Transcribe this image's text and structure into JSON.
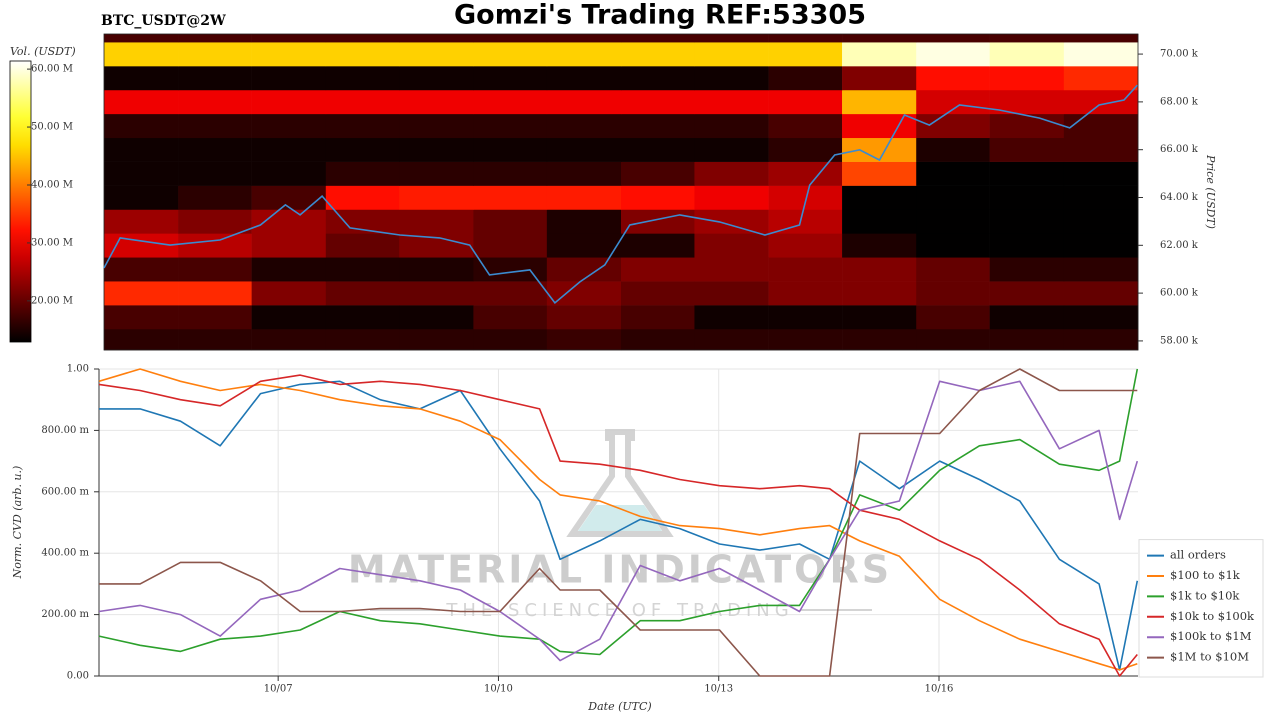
{
  "chart_data": [
    {
      "type": "heatmap",
      "title": "Gomzi's Trading REF:53305",
      "subtitle": "BTC_USDT@2W",
      "ylabel": "Price (USDT)",
      "colorbar_label": "Vol. (USDT)",
      "colormap": "hot",
      "clim": [
        12900000,
        61400000
      ],
      "colorbar_ticks": [
        {
          "value": 20000000,
          "label": "20.00 M"
        },
        {
          "value": 30000000,
          "label": "30.00 M"
        },
        {
          "value": 40000000,
          "label": "40.00 M"
        },
        {
          "value": 50000000,
          "label": "50.00 M"
        },
        {
          "value": 60000000,
          "label": "60.00 M"
        }
      ],
      "xlim": [
        4.63,
        18.71
      ],
      "ylim": [
        57620,
        70840
      ],
      "yticks": [
        {
          "value": 58000,
          "label": "58.00 k"
        },
        {
          "value": 60000,
          "label": "60.00 k"
        },
        {
          "value": 62000,
          "label": "62.00 k"
        },
        {
          "value": 64000,
          "label": "64.00 k"
        },
        {
          "value": 66000,
          "label": "66.00 k"
        },
        {
          "value": 68000,
          "label": "68.00 k"
        },
        {
          "value": 70000,
          "label": "70.00 k"
        }
      ],
      "x_bins": [
        4.63,
        5.64,
        6.64,
        7.65,
        8.65,
        9.66,
        10.66,
        11.67,
        12.67,
        13.68,
        14.68,
        15.69,
        16.69,
        17.7,
        18.71
      ],
      "y_bins": [
        57620,
        58500,
        59500,
        60500,
        61500,
        62500,
        63500,
        64500,
        65500,
        66500,
        67500,
        68500,
        69500,
        70500,
        70840
      ],
      "z": [
        [
          16000000,
          16000000,
          16000000,
          16000000,
          16000000,
          16000000,
          17000000,
          16000000,
          16000000,
          16000000,
          16000000,
          16000000,
          16000000,
          16000000
        ],
        [
          18000000,
          18000000,
          14000000,
          14000000,
          14000000,
          18000000,
          20000000,
          18000000,
          14000000,
          14000000,
          14000000,
          18000000,
          14000000,
          14000000
        ],
        [
          34000000,
          34000000,
          22000000,
          20000000,
          20000000,
          20000000,
          22000000,
          20000000,
          20000000,
          22000000,
          22000000,
          20000000,
          20000000,
          20000000
        ],
        [
          18000000,
          18000000,
          15000000,
          15000000,
          15000000,
          16000000,
          20000000,
          22000000,
          22000000,
          22000000,
          22000000,
          20000000,
          16000000,
          16000000
        ],
        [
          28000000,
          26000000,
          24000000,
          20000000,
          22000000,
          20000000,
          15000000,
          15000000,
          22000000,
          24000000,
          15000000,
          13000000,
          13000000,
          13000000
        ],
        [
          24000000,
          22000000,
          24000000,
          22000000,
          22000000,
          20000000,
          15000000,
          22000000,
          24000000,
          26000000,
          13000000,
          13000000,
          13000000,
          13000000
        ],
        [
          14000000,
          16000000,
          18000000,
          32000000,
          33000000,
          33000000,
          33000000,
          32000000,
          30000000,
          28000000,
          13000000,
          13000000,
          13000000,
          13000000
        ],
        [
          14000000,
          14000000,
          14000000,
          16000000,
          16000000,
          16000000,
          16000000,
          18000000,
          22000000,
          24000000,
          36000000,
          13000000,
          13000000,
          13000000
        ],
        [
          14000000,
          14000000,
          14000000,
          14000000,
          14000000,
          14000000,
          14000000,
          14000000,
          14000000,
          16000000,
          42000000,
          15000000,
          18000000,
          18000000
        ],
        [
          16000000,
          16000000,
          16000000,
          16000000,
          16000000,
          16000000,
          16000000,
          16000000,
          16000000,
          18000000,
          30000000,
          22000000,
          20000000,
          18000000
        ],
        [
          30000000,
          30000000,
          30000000,
          30000000,
          30000000,
          30000000,
          30000000,
          30000000,
          30000000,
          30000000,
          44000000,
          28000000,
          28000000,
          28000000
        ],
        [
          14000000,
          14000000,
          14000000,
          14000000,
          14000000,
          14000000,
          14000000,
          14000000,
          14000000,
          16000000,
          22000000,
          32000000,
          32000000,
          34000000
        ],
        [
          46000000,
          46000000,
          46000000,
          46000000,
          46000000,
          46000000,
          46000000,
          46000000,
          46000000,
          46000000,
          58000000,
          60000000,
          58000000,
          60000000
        ],
        [
          18000000,
          18000000,
          18000000,
          18000000,
          18000000,
          18000000,
          18000000,
          18000000,
          18000000,
          18000000,
          18000000,
          18000000,
          18000000,
          18000000
        ]
      ],
      "series": [
        {
          "color": "#3b8bd0",
          "x": [
            4.63,
            4.85,
            5.53,
            6.21,
            6.76,
            7.1,
            7.3,
            7.6,
            7.98,
            8.66,
            9.2,
            9.61,
            9.88,
            10.43,
            10.77,
            11.11,
            11.45,
            11.79,
            12.47,
            13.01,
            13.63,
            14.1,
            14.24,
            14.58,
            14.92,
            15.19,
            15.53,
            15.87,
            16.28,
            16.82,
            17.37,
            17.78,
            18.18,
            18.52,
            18.7
          ],
          "values": [
            61050,
            62310,
            62010,
            62220,
            62850,
            63690,
            63270,
            64060,
            62730,
            62430,
            62310,
            62010,
            60760,
            60970,
            59590,
            60470,
            61180,
            62850,
            63270,
            62980,
            62430,
            62850,
            64520,
            65780,
            65990,
            65570,
            67450,
            67030,
            67870,
            67660,
            67320,
            66910,
            67870,
            68080,
            68700
          ]
        }
      ]
    },
    {
      "type": "line",
      "xlabel": "Date (UTC)",
      "ylabel": "Norm. CVD (arb. u.)",
      "xlim": [
        4.56,
        18.71
      ],
      "xticks": [
        {
          "value": 7,
          "label": "10/07"
        },
        {
          "value": 10,
          "label": "10/10"
        },
        {
          "value": 13,
          "label": "10/13"
        },
        {
          "value": 16,
          "label": "10/16"
        }
      ],
      "ylim": [
        0,
        1
      ],
      "yticks": [
        {
          "value": 0,
          "label": "0.00"
        },
        {
          "value": 0.2,
          "label": "200.00 m"
        },
        {
          "value": 0.4,
          "label": "400.00 m"
        },
        {
          "value": 0.6,
          "label": "600.00 m"
        },
        {
          "value": 0.8,
          "label": "800.00 m"
        },
        {
          "value": 1,
          "label": "1.00"
        }
      ],
      "grid": true,
      "legend": "right",
      "watermark": {
        "title": "MATERIAL INDICATORS",
        "subtitle": "THE SCIENCE OF TRADING"
      },
      "x": [
        4.56,
        5.12,
        5.67,
        6.21,
        6.76,
        7.3,
        7.84,
        8.39,
        8.93,
        9.48,
        10.02,
        10.56,
        10.84,
        11.38,
        11.93,
        12.47,
        13.01,
        13.56,
        14.1,
        14.51,
        14.92,
        15.46,
        16.01,
        16.55,
        17.1,
        17.64,
        18.18,
        18.46,
        18.7
      ],
      "series": [
        {
          "name": "all orders",
          "color": "#1f77b4",
          "values": [
            0.87,
            0.87,
            0.83,
            0.75,
            0.92,
            0.95,
            0.96,
            0.9,
            0.87,
            0.93,
            0.74,
            0.57,
            0.38,
            0.44,
            0.51,
            0.48,
            0.43,
            0.41,
            0.43,
            0.38,
            0.7,
            0.61,
            0.7,
            0.64,
            0.57,
            0.38,
            0.3,
            0.02,
            0.31
          ]
        },
        {
          "name": "$100 to $1k",
          "color": "#ff7f0e",
          "values": [
            0.96,
            1.0,
            0.96,
            0.93,
            0.95,
            0.93,
            0.9,
            0.88,
            0.87,
            0.83,
            0.77,
            0.64,
            0.59,
            0.57,
            0.52,
            0.49,
            0.48,
            0.46,
            0.48,
            0.49,
            0.44,
            0.39,
            0.25,
            0.18,
            0.12,
            0.08,
            0.04,
            0.02,
            0.04
          ]
        },
        {
          "name": "$1k to $10k",
          "color": "#2ca02c",
          "values": [
            0.13,
            0.1,
            0.08,
            0.12,
            0.13,
            0.15,
            0.21,
            0.18,
            0.17,
            0.15,
            0.13,
            0.12,
            0.08,
            0.07,
            0.18,
            0.18,
            0.21,
            0.23,
            0.23,
            0.38,
            0.59,
            0.54,
            0.67,
            0.75,
            0.77,
            0.69,
            0.67,
            0.7,
            1.0
          ]
        },
        {
          "name": "$10k to $100k",
          "color": "#d62728",
          "values": [
            0.95,
            0.93,
            0.9,
            0.88,
            0.96,
            0.98,
            0.95,
            0.96,
            0.95,
            0.93,
            0.9,
            0.87,
            0.7,
            0.69,
            0.67,
            0.64,
            0.62,
            0.61,
            0.62,
            0.61,
            0.54,
            0.51,
            0.44,
            0.38,
            0.28,
            0.17,
            0.12,
            0.0,
            0.07
          ]
        },
        {
          "name": "$100k to $1M",
          "color": "#9467bd",
          "values": [
            0.21,
            0.23,
            0.2,
            0.13,
            0.25,
            0.28,
            0.35,
            0.33,
            0.31,
            0.28,
            0.21,
            0.12,
            0.05,
            0.12,
            0.36,
            0.31,
            0.35,
            0.28,
            0.21,
            0.38,
            0.54,
            0.57,
            0.96,
            0.93,
            0.96,
            0.74,
            0.8,
            0.51,
            0.7
          ]
        },
        {
          "name": "$1M to $10M",
          "color": "#8c564b",
          "values": [
            0.3,
            0.3,
            0.37,
            0.37,
            0.31,
            0.21,
            0.21,
            0.22,
            0.22,
            0.21,
            0.21,
            0.35,
            0.28,
            0.28,
            0.15,
            0.15,
            0.15,
            0.0,
            0.0,
            0.0,
            0.79,
            0.79,
            0.79,
            0.93,
            1.0,
            0.93,
            0.93,
            0.93,
            0.93
          ]
        }
      ]
    }
  ]
}
